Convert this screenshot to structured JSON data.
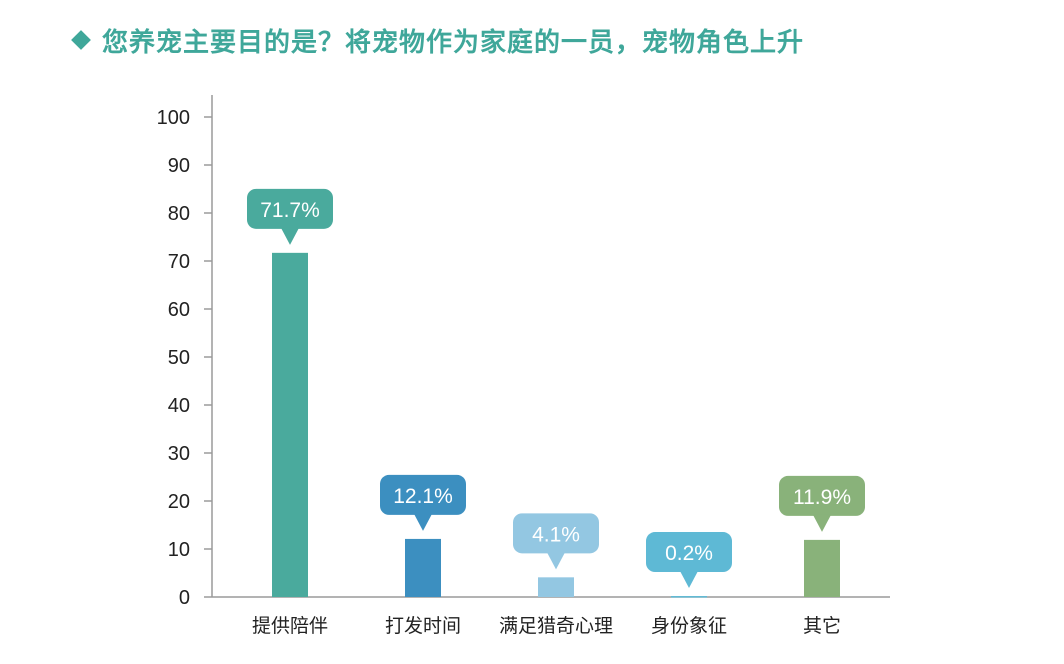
{
  "header": {
    "title": "您养宠主要目的是？将宠物作为家庭的一员，宠物角色上升",
    "marker_icon": "diamond-icon"
  },
  "chart_data": {
    "type": "bar",
    "title": "您养宠主要目的是？将宠物作为家庭的一员，宠物角色上升",
    "xlabel": "",
    "ylabel": "",
    "ylim": [
      0,
      100
    ],
    "yticks": [
      0,
      10,
      20,
      30,
      40,
      50,
      60,
      70,
      80,
      90,
      100
    ],
    "categories": [
      "提供陪伴",
      "打发时间",
      "满足猎奇心理",
      "身份象征",
      "其它"
    ],
    "values": [
      71.7,
      12.1,
      4.1,
      0.2,
      11.9
    ],
    "data_labels": [
      "71.7%",
      "12.1%",
      "4.1%",
      "0.2%",
      "11.9%"
    ],
    "colors": [
      "#4aaa9d",
      "#3c8fc0",
      "#93c7e2",
      "#5eb9d5",
      "#89b27a"
    ],
    "grid": false,
    "legend": "none"
  },
  "colors": {
    "title": "#3fa79a",
    "axis": "#9a9a9a"
  }
}
